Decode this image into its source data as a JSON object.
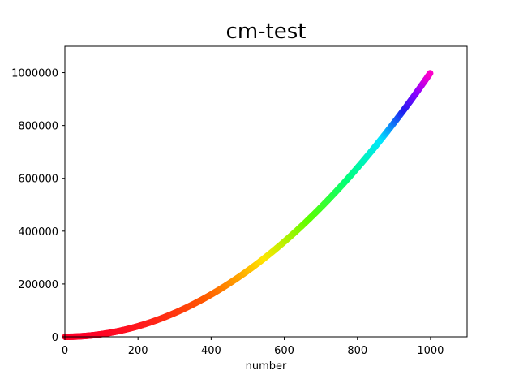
{
  "chart_data": {
    "type": "scatter",
    "title": "cm-test",
    "xlabel": "number",
    "ylabel": "",
    "xlim": [
      0,
      1100
    ],
    "ylim": [
      0,
      1100000
    ],
    "xticks": [
      0,
      200,
      400,
      600,
      800,
      1000
    ],
    "xtick_labels": [
      "0",
      "200",
      "400",
      "600",
      "800",
      "1000"
    ],
    "yticks": [
      0,
      200000,
      400000,
      600000,
      800000,
      1000000
    ],
    "ytick_labels": [
      "0",
      "200000",
      "400000",
      "600000",
      "800000",
      "1000000"
    ],
    "grid": false,
    "colormap": "gist_rainbow",
    "series": [
      {
        "x_range": [
          1,
          1000
        ],
        "function": "y = x^2",
        "x": [
          1,
          50,
          100,
          150,
          200,
          250,
          300,
          350,
          400,
          450,
          500,
          550,
          600,
          650,
          700,
          750,
          800,
          850,
          900,
          950,
          1000
        ],
        "y": [
          1,
          2500,
          10000,
          22500,
          40000,
          62500,
          90000,
          122500,
          160000,
          202500,
          250000,
          302500,
          360000,
          422500,
          490000,
          562500,
          640000,
          722500,
          810000,
          902500,
          1000000
        ],
        "color_by": "y"
      }
    ]
  }
}
